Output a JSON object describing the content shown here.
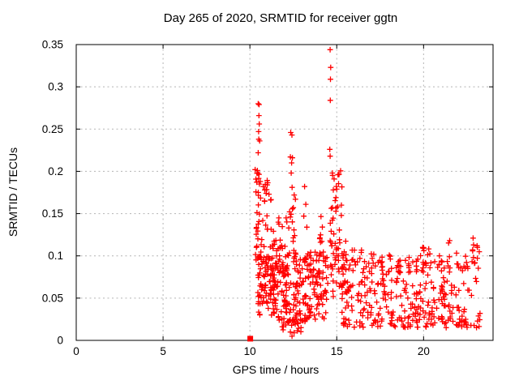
{
  "window": {
    "background": "#ffffff"
  },
  "chart_data": {
    "type": "scatter",
    "title": "Day 265 of 2020, SRMTID for receiver ggtn",
    "xlabel": "GPS time / hours",
    "ylabel": "SRMTID / TECUs",
    "xlim": [
      0,
      24
    ],
    "ylim": [
      0,
      0.35
    ],
    "x_ticks": [
      0,
      5,
      10,
      15,
      20
    ],
    "x_tick_labels": [
      "0",
      "5",
      "10",
      "15",
      "20"
    ],
    "y_ticks": [
      0,
      0.05,
      0.1,
      0.15,
      0.2,
      0.25,
      0.3,
      0.35
    ],
    "y_tick_labels": [
      "0",
      "0.05",
      "0.1",
      "0.15",
      "0.2",
      "0.25",
      "0.3",
      "0.35"
    ],
    "grid": true,
    "grid_style": "dashed",
    "legend": "none",
    "marker": "plus",
    "marker_color": "#ff0000",
    "grid_color": "#b3b3b3",
    "axis_color": "#000000",
    "data_time_span_hours": [
      10.3,
      23.3
    ],
    "square_marker_point": [
      10.02,
      0.002
    ],
    "notable_points": [
      [
        10.48,
        0.28
      ],
      [
        10.53,
        0.279
      ],
      [
        10.52,
        0.266
      ],
      [
        10.54,
        0.256
      ],
      [
        10.5,
        0.247
      ],
      [
        10.51,
        0.238
      ],
      [
        10.56,
        0.236
      ],
      [
        10.48,
        0.222
      ],
      [
        10.3,
        0.202
      ],
      [
        10.43,
        0.201
      ],
      [
        10.46,
        0.198
      ],
      [
        10.55,
        0.185
      ],
      [
        11.0,
        0.184
      ],
      [
        10.85,
        0.178
      ],
      [
        11.1,
        0.173
      ],
      [
        12.35,
        0.246
      ],
      [
        12.42,
        0.243
      ],
      [
        12.33,
        0.217
      ],
      [
        12.45,
        0.216
      ],
      [
        12.4,
        0.21
      ],
      [
        12.38,
        0.198
      ],
      [
        12.43,
        0.181
      ],
      [
        12.55,
        0.172
      ],
      [
        12.62,
        0.167
      ],
      [
        12.5,
        0.157
      ],
      [
        13.15,
        0.182
      ],
      [
        13.22,
        0.161
      ],
      [
        13.1,
        0.147
      ],
      [
        13.28,
        0.134
      ],
      [
        14.62,
        0.344
      ],
      [
        14.65,
        0.323
      ],
      [
        14.64,
        0.309
      ],
      [
        14.63,
        0.284
      ],
      [
        14.6,
        0.226
      ],
      [
        14.62,
        0.218
      ],
      [
        14.75,
        0.198
      ],
      [
        14.85,
        0.191
      ],
      [
        14.8,
        0.178
      ],
      [
        14.95,
        0.169
      ],
      [
        15.05,
        0.158
      ],
      [
        19.95,
        0.11
      ],
      [
        21.5,
        0.118
      ],
      [
        22.85,
        0.121
      ],
      [
        22.88,
        0.113
      ],
      [
        23.1,
        0.11
      ]
    ],
    "scatter_clusters": [
      {
        "n": 22,
        "x": [
          10.32,
          10.62
        ],
        "y": [
          0.095,
          0.2
        ],
        "bias": 1.0
      },
      {
        "n": 30,
        "x": [
          10.35,
          11.25
        ],
        "y": [
          0.095,
          0.19
        ],
        "bias": 1.6
      },
      {
        "n": 80,
        "x": [
          10.4,
          11.4
        ],
        "y": [
          0.03,
          0.1
        ],
        "bias": 1.2
      },
      {
        "n": 100,
        "x": [
          11.3,
          12.35
        ],
        "y": [
          0.02,
          0.115
        ],
        "bias": 1.1
      },
      {
        "n": 16,
        "x": [
          11.35,
          12.3
        ],
        "y": [
          0.1,
          0.155
        ],
        "bias": 1.4
      },
      {
        "n": 22,
        "x": [
          11.85,
          13.05
        ],
        "y": [
          0.004,
          0.025
        ],
        "bias": 1.0
      },
      {
        "n": 12,
        "x": [
          12.3,
          12.65
        ],
        "y": [
          0.095,
          0.16
        ],
        "bias": 1.2
      },
      {
        "n": 65,
        "x": [
          12.45,
          13.35
        ],
        "y": [
          0.022,
          0.1
        ],
        "bias": 1.2
      },
      {
        "n": 85,
        "x": [
          13.3,
          14.5
        ],
        "y": [
          0.025,
          0.105
        ],
        "bias": 1.15
      },
      {
        "n": 9,
        "x": [
          13.9,
          14.25
        ],
        "y": [
          0.1,
          0.148
        ],
        "bias": 1.3
      },
      {
        "n": 26,
        "x": [
          14.55,
          15.3
        ],
        "y": [
          0.1,
          0.21
        ],
        "bias": 1.1
      },
      {
        "n": 40,
        "x": [
          14.6,
          15.55
        ],
        "y": [
          0.05,
          0.125
        ],
        "bias": 1.2
      },
      {
        "n": 310,
        "x": [
          15.3,
          23.3
        ],
        "y": [
          0.015,
          0.095
        ],
        "bias": 1.35
      },
      {
        "n": 18,
        "x": [
          15.35,
          23.25
        ],
        "y": [
          0.085,
          0.105
        ],
        "bias": 1.0
      }
    ],
    "local_spikes": [
      {
        "x": 15.45,
        "n": 4,
        "y": [
          0.08,
          0.105
        ]
      },
      {
        "x": 15.95,
        "n": 4,
        "y": [
          0.08,
          0.107
        ]
      },
      {
        "x": 16.5,
        "n": 4,
        "y": [
          0.08,
          0.11
        ]
      },
      {
        "x": 17.05,
        "n": 4,
        "y": [
          0.08,
          0.105
        ]
      },
      {
        "x": 17.55,
        "n": 3,
        "y": [
          0.08,
          0.1
        ]
      },
      {
        "x": 18.1,
        "n": 4,
        "y": [
          0.08,
          0.108
        ]
      },
      {
        "x": 18.6,
        "n": 3,
        "y": [
          0.078,
          0.098
        ]
      },
      {
        "x": 19.15,
        "n": 3,
        "y": [
          0.08,
          0.1
        ]
      },
      {
        "x": 19.95,
        "n": 5,
        "y": [
          0.085,
          0.118
        ]
      },
      {
        "x": 20.35,
        "n": 4,
        "y": [
          0.082,
          0.112
        ]
      },
      {
        "x": 20.9,
        "n": 3,
        "y": [
          0.08,
          0.1
        ]
      },
      {
        "x": 21.5,
        "n": 4,
        "y": [
          0.085,
          0.118
        ]
      },
      {
        "x": 21.95,
        "n": 3,
        "y": [
          0.08,
          0.105
        ]
      },
      {
        "x": 22.45,
        "n": 3,
        "y": [
          0.08,
          0.103
        ]
      },
      {
        "x": 22.87,
        "n": 6,
        "y": [
          0.09,
          0.122
        ]
      },
      {
        "x": 23.12,
        "n": 4,
        "y": [
          0.085,
          0.112
        ]
      }
    ],
    "prng_seed": 7
  }
}
